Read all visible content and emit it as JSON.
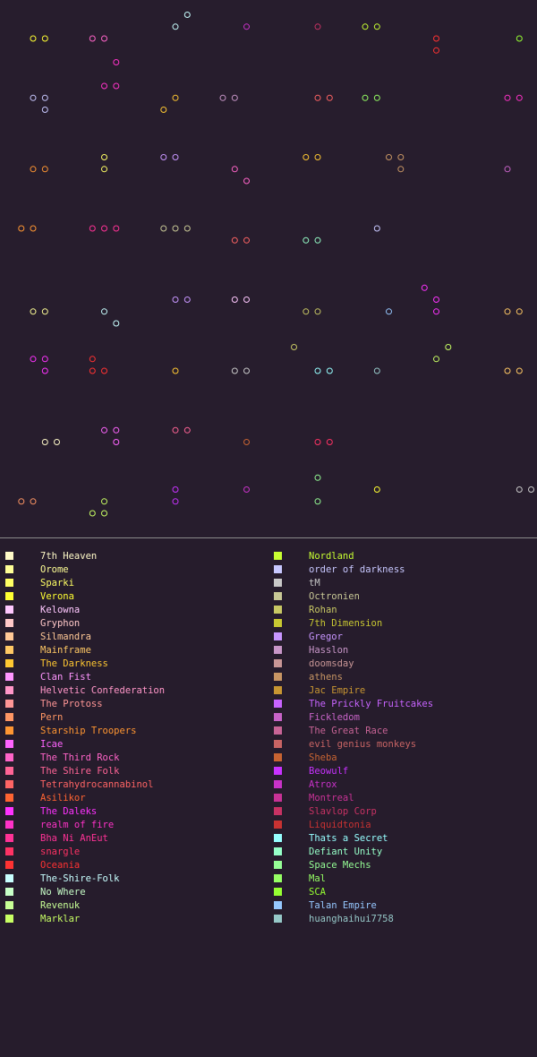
{
  "teams": [
    {
      "name": "7th Heaven",
      "color": "#fffac8"
    },
    {
      "name": "Orome",
      "color": "#ffff96"
    },
    {
      "name": "Sparki",
      "color": "#ffff64"
    },
    {
      "name": "Verona",
      "color": "#ffff32"
    },
    {
      "name": "Kelowna",
      "color": "#ffc8ff"
    },
    {
      "name": "Gryphon",
      "color": "#ffc8c8"
    },
    {
      "name": "Silmandra",
      "color": "#ffc896"
    },
    {
      "name": "Mainframe",
      "color": "#ffc864"
    },
    {
      "name": "The Darkness",
      "color": "#ffc832"
    },
    {
      "name": "Clan Fist",
      "color": "#ff96ff"
    },
    {
      "name": "Helvetic Confederation",
      "color": "#ff96c8"
    },
    {
      "name": "The Protoss",
      "color": "#ff9696"
    },
    {
      "name": "Pern",
      "color": "#ff9664"
    },
    {
      "name": "Starship Troopers",
      "color": "#ff9632"
    },
    {
      "name": "Icae",
      "color": "#ff64ff"
    },
    {
      "name": "The Third Rock",
      "color": "#ff64c8"
    },
    {
      "name": "The Shire Folk",
      "color": "#ff6496"
    },
    {
      "name": "Tetrahydrocannabinol",
      "color": "#ff6464"
    },
    {
      "name": "Asilikor",
      "color": "#ff6432"
    },
    {
      "name": "The Daleks",
      "color": "#ff32ff"
    },
    {
      "name": "realm of fire",
      "color": "#ff32c8"
    },
    {
      "name": "Bha Ni AnEut",
      "color": "#ff3296"
    },
    {
      "name": "snargle",
      "color": "#ff3264"
    },
    {
      "name": "Oceania",
      "color": "#ff3232"
    },
    {
      "name": "The-Shire-Folk",
      "color": "#c8ffff"
    },
    {
      "name": "No Where",
      "color": "#c8ffc8"
    },
    {
      "name": "Revenuk",
      "color": "#c8ff96"
    },
    {
      "name": "Marklar",
      "color": "#c8ff64"
    },
    {
      "name": "Nordland",
      "color": "#c8ff32"
    },
    {
      "name": "order of darkness",
      "color": "#c8c8ff"
    },
    {
      "name": "tM",
      "color": "#c8c8c8"
    },
    {
      "name": "Octronien",
      "color": "#c8c896"
    },
    {
      "name": "Rohan",
      "color": "#c8c864"
    },
    {
      "name": "7th Dimension",
      "color": "#c8c832"
    },
    {
      "name": "Gregor",
      "color": "#c896ff"
    },
    {
      "name": "Hasslon",
      "color": "#c896c8"
    },
    {
      "name": "doomsday",
      "color": "#c89696"
    },
    {
      "name": "athens",
      "color": "#c89664"
    },
    {
      "name": "Jac Empire",
      "color": "#c89632"
    },
    {
      "name": "The Prickly Fruitcakes",
      "color": "#c864ff"
    },
    {
      "name": "Fickledom",
      "color": "#c864c8"
    },
    {
      "name": "The Great Race",
      "color": "#c86496"
    },
    {
      "name": "evil genius monkeys",
      "color": "#c86464"
    },
    {
      "name": "Sheba",
      "color": "#c86432"
    },
    {
      "name": "Beowulf",
      "color": "#c832ff"
    },
    {
      "name": "Atrox",
      "color": "#c832c8"
    },
    {
      "name": "Montreal",
      "color": "#c83296"
    },
    {
      "name": "Slavlop Corp",
      "color": "#c83264"
    },
    {
      "name": "Liquidtonia",
      "color": "#c83232"
    },
    {
      "name": "Thats a Secret",
      "color": "#96ffff"
    },
    {
      "name": "Defiant Unity",
      "color": "#96ffc8"
    },
    {
      "name": "Space Mechs",
      "color": "#96ff96"
    },
    {
      "name": "Mal",
      "color": "#96ff64"
    },
    {
      "name": "SCA",
      "color": "#96ff32"
    },
    {
      "name": "Talan Empire",
      "color": "#96c8ff"
    },
    {
      "name": "huanghaihui7758",
      "color": "#96c8c8"
    }
  ],
  "planets": [
    {
      "col": 2,
      "row": 2,
      "c": "#ffff32"
    },
    {
      "col": 3,
      "row": 2,
      "c": "#ffff32"
    },
    {
      "col": 7,
      "row": 2,
      "c": "#ff64c8"
    },
    {
      "col": 8,
      "row": 2,
      "c": "#ff64c8"
    },
    {
      "col": 14,
      "row": 1,
      "c": "#c8ffff"
    },
    {
      "col": 15,
      "row": 0,
      "c": "#c8ffff"
    },
    {
      "col": 20,
      "row": 1,
      "c": "#c832c8"
    },
    {
      "col": 26,
      "row": 1,
      "c": "#c83264"
    },
    {
      "col": 30,
      "row": 1,
      "c": "#c8ff32"
    },
    {
      "col": 31,
      "row": 1,
      "c": "#c8ff32"
    },
    {
      "col": 36,
      "row": 2,
      "c": "#ff3232"
    },
    {
      "col": 36,
      "row": 3,
      "c": "#ff3232"
    },
    {
      "col": 43,
      "row": 2,
      "c": "#96ff32"
    },
    {
      "col": 9,
      "row": 4,
      "c": "#ff32c8"
    },
    {
      "col": 8,
      "row": 6,
      "c": "#ff32c8"
    },
    {
      "col": 9,
      "row": 6,
      "c": "#ff32c8"
    },
    {
      "col": 2,
      "row": 7,
      "c": "#c8c8ff"
    },
    {
      "col": 3,
      "row": 7,
      "c": "#c8c8ff"
    },
    {
      "col": 3,
      "row": 8,
      "c": "#c8c8ff"
    },
    {
      "col": 13,
      "row": 8,
      "c": "#ffc832"
    },
    {
      "col": 14,
      "row": 7,
      "c": "#ffc832"
    },
    {
      "col": 18,
      "row": 7,
      "c": "#c896c8"
    },
    {
      "col": 19,
      "row": 7,
      "c": "#c896c8"
    },
    {
      "col": 26,
      "row": 7,
      "c": "#ff6464"
    },
    {
      "col": 27,
      "row": 7,
      "c": "#ff6464"
    },
    {
      "col": 30,
      "row": 7,
      "c": "#96ff64"
    },
    {
      "col": 31,
      "row": 7,
      "c": "#96ff64"
    },
    {
      "col": 42,
      "row": 7,
      "c": "#ff32c8"
    },
    {
      "col": 43,
      "row": 7,
      "c": "#ff32c8"
    },
    {
      "col": 2,
      "row": 13,
      "c": "#ff9632"
    },
    {
      "col": 3,
      "row": 13,
      "c": "#ff9632"
    },
    {
      "col": 8,
      "row": 12,
      "c": "#ffff64"
    },
    {
      "col": 8,
      "row": 13,
      "c": "#ffff64"
    },
    {
      "col": 13,
      "row": 12,
      "c": "#c896ff"
    },
    {
      "col": 14,
      "row": 12,
      "c": "#c896ff"
    },
    {
      "col": 19,
      "row": 13,
      "c": "#ff64c8"
    },
    {
      "col": 20,
      "row": 14,
      "c": "#ff64c8"
    },
    {
      "col": 25,
      "row": 12,
      "c": "#ffc832"
    },
    {
      "col": 26,
      "row": 12,
      "c": "#ffc832"
    },
    {
      "col": 32,
      "row": 12,
      "c": "#c89664"
    },
    {
      "col": 33,
      "row": 12,
      "c": "#c89664"
    },
    {
      "col": 33,
      "row": 13,
      "c": "#c89664"
    },
    {
      "col": 42,
      "row": 13,
      "c": "#c864c8"
    },
    {
      "col": 1,
      "row": 18,
      "c": "#ff9632"
    },
    {
      "col": 2,
      "row": 18,
      "c": "#ff9632"
    },
    {
      "col": 7,
      "row": 18,
      "c": "#ff3296"
    },
    {
      "col": 8,
      "row": 18,
      "c": "#ff3296"
    },
    {
      "col": 9,
      "row": 18,
      "c": "#ff3296"
    },
    {
      "col": 13,
      "row": 18,
      "c": "#c8c896"
    },
    {
      "col": 14,
      "row": 18,
      "c": "#c8c896"
    },
    {
      "col": 15,
      "row": 18,
      "c": "#c8c896"
    },
    {
      "col": 19,
      "row": 19,
      "c": "#ff6464"
    },
    {
      "col": 20,
      "row": 19,
      "c": "#ff6464"
    },
    {
      "col": 25,
      "row": 19,
      "c": "#96ffc8"
    },
    {
      "col": 26,
      "row": 19,
      "c": "#96ffc8"
    },
    {
      "col": 31,
      "row": 18,
      "c": "#c8c8ff"
    },
    {
      "col": 2,
      "row": 25,
      "c": "#ffff96"
    },
    {
      "col": 3,
      "row": 25,
      "c": "#ffff96"
    },
    {
      "col": 8,
      "row": 25,
      "c": "#c8ffff"
    },
    {
      "col": 9,
      "row": 26,
      "c": "#c8ffff"
    },
    {
      "col": 14,
      "row": 24,
      "c": "#c896ff"
    },
    {
      "col": 15,
      "row": 24,
      "c": "#c896ff"
    },
    {
      "col": 19,
      "row": 24,
      "c": "#ffc8ff"
    },
    {
      "col": 20,
      "row": 24,
      "c": "#ffc8ff"
    },
    {
      "col": 25,
      "row": 25,
      "c": "#c8c864"
    },
    {
      "col": 26,
      "row": 25,
      "c": "#c8c864"
    },
    {
      "col": 32,
      "row": 25,
      "c": "#96c8ff"
    },
    {
      "col": 35,
      "row": 23,
      "c": "#ff32ff"
    },
    {
      "col": 36,
      "row": 24,
      "c": "#ff32ff"
    },
    {
      "col": 36,
      "row": 25,
      "c": "#ff32ff"
    },
    {
      "col": 42,
      "row": 25,
      "c": "#ffc864"
    },
    {
      "col": 43,
      "row": 25,
      "c": "#ffc864"
    },
    {
      "col": 2,
      "row": 29,
      "c": "#ff32ff"
    },
    {
      "col": 3,
      "row": 29,
      "c": "#ff32ff"
    },
    {
      "col": 3,
      "row": 30,
      "c": "#ff32ff"
    },
    {
      "col": 7,
      "row": 29,
      "c": "#ff3232"
    },
    {
      "col": 7,
      "row": 30,
      "c": "#ff3232"
    },
    {
      "col": 8,
      "row": 30,
      "c": "#ff3232"
    },
    {
      "col": 14,
      "row": 30,
      "c": "#ffc832"
    },
    {
      "col": 19,
      "row": 30,
      "c": "#c8c8c8"
    },
    {
      "col": 20,
      "row": 30,
      "c": "#c8c8c8"
    },
    {
      "col": 24,
      "row": 28,
      "c": "#c8c864"
    },
    {
      "col": 26,
      "row": 30,
      "c": "#96ffff"
    },
    {
      "col": 27,
      "row": 30,
      "c": "#96ffff"
    },
    {
      "col": 31,
      "row": 30,
      "c": "#96c8c8"
    },
    {
      "col": 36,
      "row": 29,
      "c": "#c8ff64"
    },
    {
      "col": 37,
      "row": 28,
      "c": "#c8ff64"
    },
    {
      "col": 42,
      "row": 30,
      "c": "#ffc864"
    },
    {
      "col": 43,
      "row": 30,
      "c": "#ffc864"
    },
    {
      "col": 3,
      "row": 36,
      "c": "#fffac8"
    },
    {
      "col": 4,
      "row": 36,
      "c": "#fffac8"
    },
    {
      "col": 8,
      "row": 35,
      "c": "#ff64ff"
    },
    {
      "col": 9,
      "row": 35,
      "c": "#ff64ff"
    },
    {
      "col": 9,
      "row": 36,
      "c": "#ff64ff"
    },
    {
      "col": 14,
      "row": 35,
      "c": "#ff6496"
    },
    {
      "col": 15,
      "row": 35,
      "c": "#ff6496"
    },
    {
      "col": 20,
      "row": 36,
      "c": "#c86432"
    },
    {
      "col": 26,
      "row": 36,
      "c": "#ff3264"
    },
    {
      "col": 27,
      "row": 36,
      "c": "#ff3264"
    },
    {
      "col": 1,
      "row": 41,
      "c": "#ff9664"
    },
    {
      "col": 2,
      "row": 41,
      "c": "#ff9664"
    },
    {
      "col": 7,
      "row": 42,
      "c": "#c8ff64"
    },
    {
      "col": 8,
      "row": 42,
      "c": "#c8ff64"
    },
    {
      "col": 8,
      "row": 41,
      "c": "#c8ff64"
    },
    {
      "col": 14,
      "row": 40,
      "c": "#c832ff"
    },
    {
      "col": 14,
      "row": 41,
      "c": "#c832ff"
    },
    {
      "col": 20,
      "row": 40,
      "c": "#c832c8"
    },
    {
      "col": 26,
      "row": 39,
      "c": "#96ff96"
    },
    {
      "col": 26,
      "row": 41,
      "c": "#96ff96"
    },
    {
      "col": 31,
      "row": 40,
      "c": "#ffff32"
    },
    {
      "col": 43,
      "row": 40,
      "c": "#c8c8c8"
    },
    {
      "col": 44,
      "row": 40,
      "c": "#c8c8c8"
    }
  ]
}
